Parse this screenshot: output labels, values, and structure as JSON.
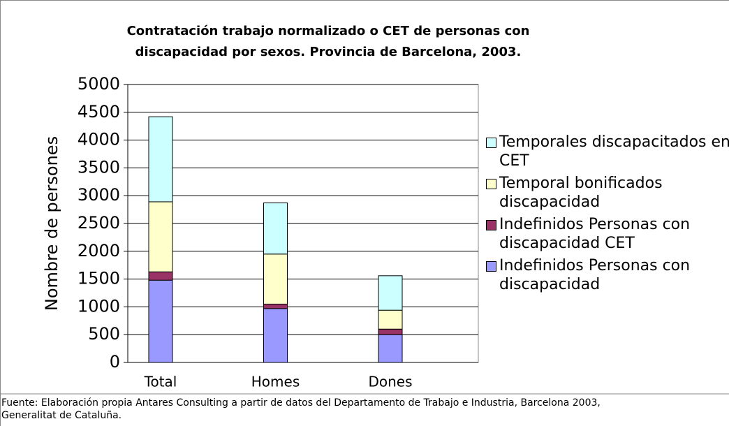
{
  "chart_data": {
    "type": "stacked_bar",
    "title": "Contratación trabajo normalizado o CET de personas con\ndiscapacidad por sexos. Provincia de Barcelona, 2003.",
    "y_label": "Nombre de persones",
    "categories": [
      "Total",
      "Homes",
      "Dones"
    ],
    "series": [
      {
        "name": "Indefinidos Personas con discapacidad",
        "color": "#9999ff",
        "values": [
          1480,
          970,
          500
        ]
      },
      {
        "name": "Indefinidos Personas con discapacidad CET",
        "color": "#993366",
        "values": [
          150,
          80,
          100
        ]
      },
      {
        "name": "Temporal bonificados discapacidad",
        "color": "#ffffcc",
        "values": [
          1260,
          900,
          340
        ]
      },
      {
        "name": "Temporales discapacitados en CET",
        "color": "#ccffff",
        "values": [
          1530,
          920,
          620
        ]
      }
    ],
    "ylim": [
      0,
      5000
    ],
    "yticks": [
      0,
      500,
      1000,
      1500,
      2000,
      2500,
      3000,
      3500,
      4000,
      4500,
      5000
    ],
    "grid": true,
    "legend": "right",
    "source": "Fuente: Elaboración propia Antares Consulting a partir de datos del Departamento de Trabajo e Industria, Barcelona 2003,\nGeneralitat de Cataluña."
  }
}
